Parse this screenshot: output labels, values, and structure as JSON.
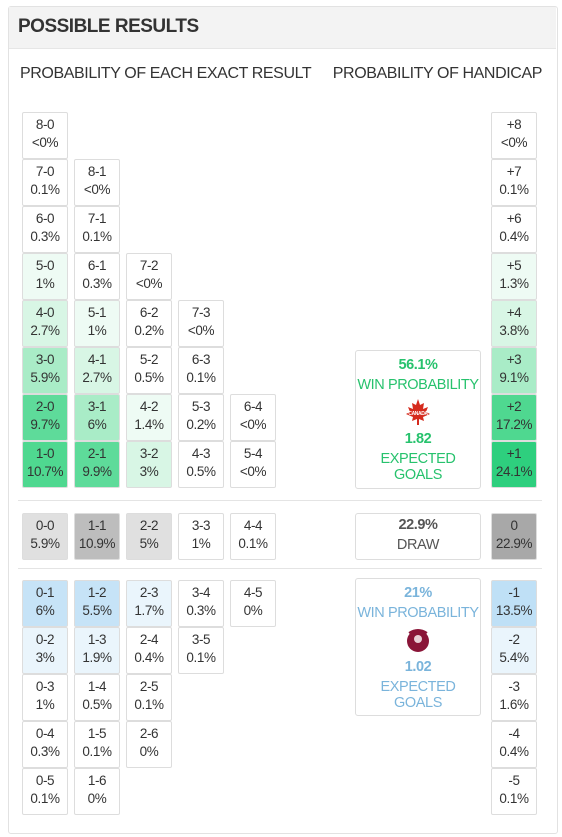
{
  "header": {
    "title": "POSSIBLE RESULTS"
  },
  "headings": {
    "exact": "PROBABILITY OF EACH EXACT RESULT",
    "handicap": "PROBABILITY OF HANDICAP"
  },
  "home": {
    "rows": [
      [
        {
          "score": "8-0",
          "prob": "<0%",
          "color": "#ffffff"
        }
      ],
      [
        {
          "score": "7-0",
          "prob": "0.1%",
          "color": "#ffffff"
        },
        {
          "score": "8-1",
          "prob": "<0%",
          "color": "#ffffff"
        }
      ],
      [
        {
          "score": "6-0",
          "prob": "0.3%",
          "color": "#ffffff"
        },
        {
          "score": "7-1",
          "prob": "0.1%",
          "color": "#ffffff"
        }
      ],
      [
        {
          "score": "5-0",
          "prob": "1%",
          "color": "#eefbf4"
        },
        {
          "score": "6-1",
          "prob": "0.3%",
          "color": "#ffffff"
        },
        {
          "score": "7-2",
          "prob": "<0%",
          "color": "#ffffff"
        }
      ],
      [
        {
          "score": "4-0",
          "prob": "2.7%",
          "color": "#d8f6e5"
        },
        {
          "score": "5-1",
          "prob": "1%",
          "color": "#eefbf4"
        },
        {
          "score": "6-2",
          "prob": "0.2%",
          "color": "#ffffff"
        },
        {
          "score": "7-3",
          "prob": "<0%",
          "color": "#ffffff"
        }
      ],
      [
        {
          "score": "3-0",
          "prob": "5.9%",
          "color": "#a9ecc7"
        },
        {
          "score": "4-1",
          "prob": "2.7%",
          "color": "#d8f6e5"
        },
        {
          "score": "5-2",
          "prob": "0.5%",
          "color": "#ffffff"
        },
        {
          "score": "6-3",
          "prob": "0.1%",
          "color": "#ffffff"
        }
      ],
      [
        {
          "score": "2-0",
          "prob": "9.7%",
          "color": "#5edb9a"
        },
        {
          "score": "3-1",
          "prob": "6%",
          "color": "#a9ecc7"
        },
        {
          "score": "4-2",
          "prob": "1.4%",
          "color": "#eefbf4"
        },
        {
          "score": "5-3",
          "prob": "0.2%",
          "color": "#ffffff"
        },
        {
          "score": "6-4",
          "prob": "<0%",
          "color": "#ffffff"
        }
      ],
      [
        {
          "score": "1-0",
          "prob": "10.7%",
          "color": "#4fd890"
        },
        {
          "score": "2-1",
          "prob": "9.9%",
          "color": "#5edb9a"
        },
        {
          "score": "3-2",
          "prob": "3%",
          "color": "#d8f6e5"
        },
        {
          "score": "4-3",
          "prob": "0.5%",
          "color": "#ffffff"
        },
        {
          "score": "5-4",
          "prob": "<0%",
          "color": "#ffffff"
        }
      ]
    ],
    "handicap": [
      {
        "score": "+8",
        "prob": "<0%",
        "color": "#ffffff"
      },
      {
        "score": "+7",
        "prob": "0.1%",
        "color": "#ffffff"
      },
      {
        "score": "+6",
        "prob": "0.4%",
        "color": "#ffffff"
      },
      {
        "score": "+5",
        "prob": "1.3%",
        "color": "#eefbf4"
      },
      {
        "score": "+4",
        "prob": "3.8%",
        "color": "#d8f6e5"
      },
      {
        "score": "+3",
        "prob": "9.1%",
        "color": "#a9ecc7"
      },
      {
        "score": "+2",
        "prob": "17.2%",
        "color": "#4fd890"
      },
      {
        "score": "+1",
        "prob": "24.1%",
        "color": "#2ecf7e"
      }
    ],
    "summary": {
      "win": "56.1%",
      "win_label": "WIN PROBABILITY",
      "xg": "1.82",
      "xg_label": "EXPECTED GOALS",
      "color": "#27c26d"
    }
  },
  "draw": {
    "rows": [
      [
        {
          "score": "0-0",
          "prob": "5.9%",
          "color": "#e0e0e0"
        },
        {
          "score": "1-1",
          "prob": "10.9%",
          "color": "#bdbdbd"
        },
        {
          "score": "2-2",
          "prob": "5%",
          "color": "#e0e0e0"
        },
        {
          "score": "3-3",
          "prob": "1%",
          "color": "#ffffff"
        },
        {
          "score": "4-4",
          "prob": "0.1%",
          "color": "#ffffff"
        }
      ]
    ],
    "handicap": [
      {
        "score": "0",
        "prob": "22.9%",
        "color": "#a8a8a8"
      }
    ],
    "summary": {
      "prob": "22.9%",
      "label": "DRAW",
      "color": "#555555"
    }
  },
  "away": {
    "rows": [
      [
        {
          "score": "0-1",
          "prob": "6%",
          "color": "#c6e3f7"
        },
        {
          "score": "1-2",
          "prob": "5.5%",
          "color": "#c6e3f7"
        },
        {
          "score": "2-3",
          "prob": "1.7%",
          "color": "#eaf5fc"
        },
        {
          "score": "3-4",
          "prob": "0.3%",
          "color": "#ffffff"
        },
        {
          "score": "4-5",
          "prob": "0%",
          "color": "#ffffff"
        }
      ],
      [
        {
          "score": "0-2",
          "prob": "3%",
          "color": "#eaf5fc"
        },
        {
          "score": "1-3",
          "prob": "1.9%",
          "color": "#eaf5fc"
        },
        {
          "score": "2-4",
          "prob": "0.4%",
          "color": "#ffffff"
        },
        {
          "score": "3-5",
          "prob": "0.1%",
          "color": "#ffffff"
        }
      ],
      [
        {
          "score": "0-3",
          "prob": "1%",
          "color": "#ffffff"
        },
        {
          "score": "1-4",
          "prob": "0.5%",
          "color": "#ffffff"
        },
        {
          "score": "2-5",
          "prob": "0.1%",
          "color": "#ffffff"
        }
      ],
      [
        {
          "score": "0-4",
          "prob": "0.3%",
          "color": "#ffffff"
        },
        {
          "score": "1-5",
          "prob": "0.1%",
          "color": "#ffffff"
        },
        {
          "score": "2-6",
          "prob": "0%",
          "color": "#ffffff"
        }
      ],
      [
        {
          "score": "0-5",
          "prob": "0.1%",
          "color": "#ffffff"
        },
        {
          "score": "1-6",
          "prob": "0%",
          "color": "#ffffff"
        }
      ]
    ],
    "handicap": [
      {
        "score": "-1",
        "prob": "13.5%",
        "color": "#bfe0f6"
      },
      {
        "score": "-2",
        "prob": "5.4%",
        "color": "#eaf5fc"
      },
      {
        "score": "-3",
        "prob": "1.6%",
        "color": "#ffffff"
      },
      {
        "score": "-4",
        "prob": "0.4%",
        "color": "#ffffff"
      },
      {
        "score": "-5",
        "prob": "0.1%",
        "color": "#ffffff"
      }
    ],
    "summary": {
      "win": "21%",
      "win_label": "WIN PROBABILITY",
      "xg": "1.02",
      "xg_label": "EXPECTED GOALS",
      "color": "#7ab4db"
    }
  }
}
